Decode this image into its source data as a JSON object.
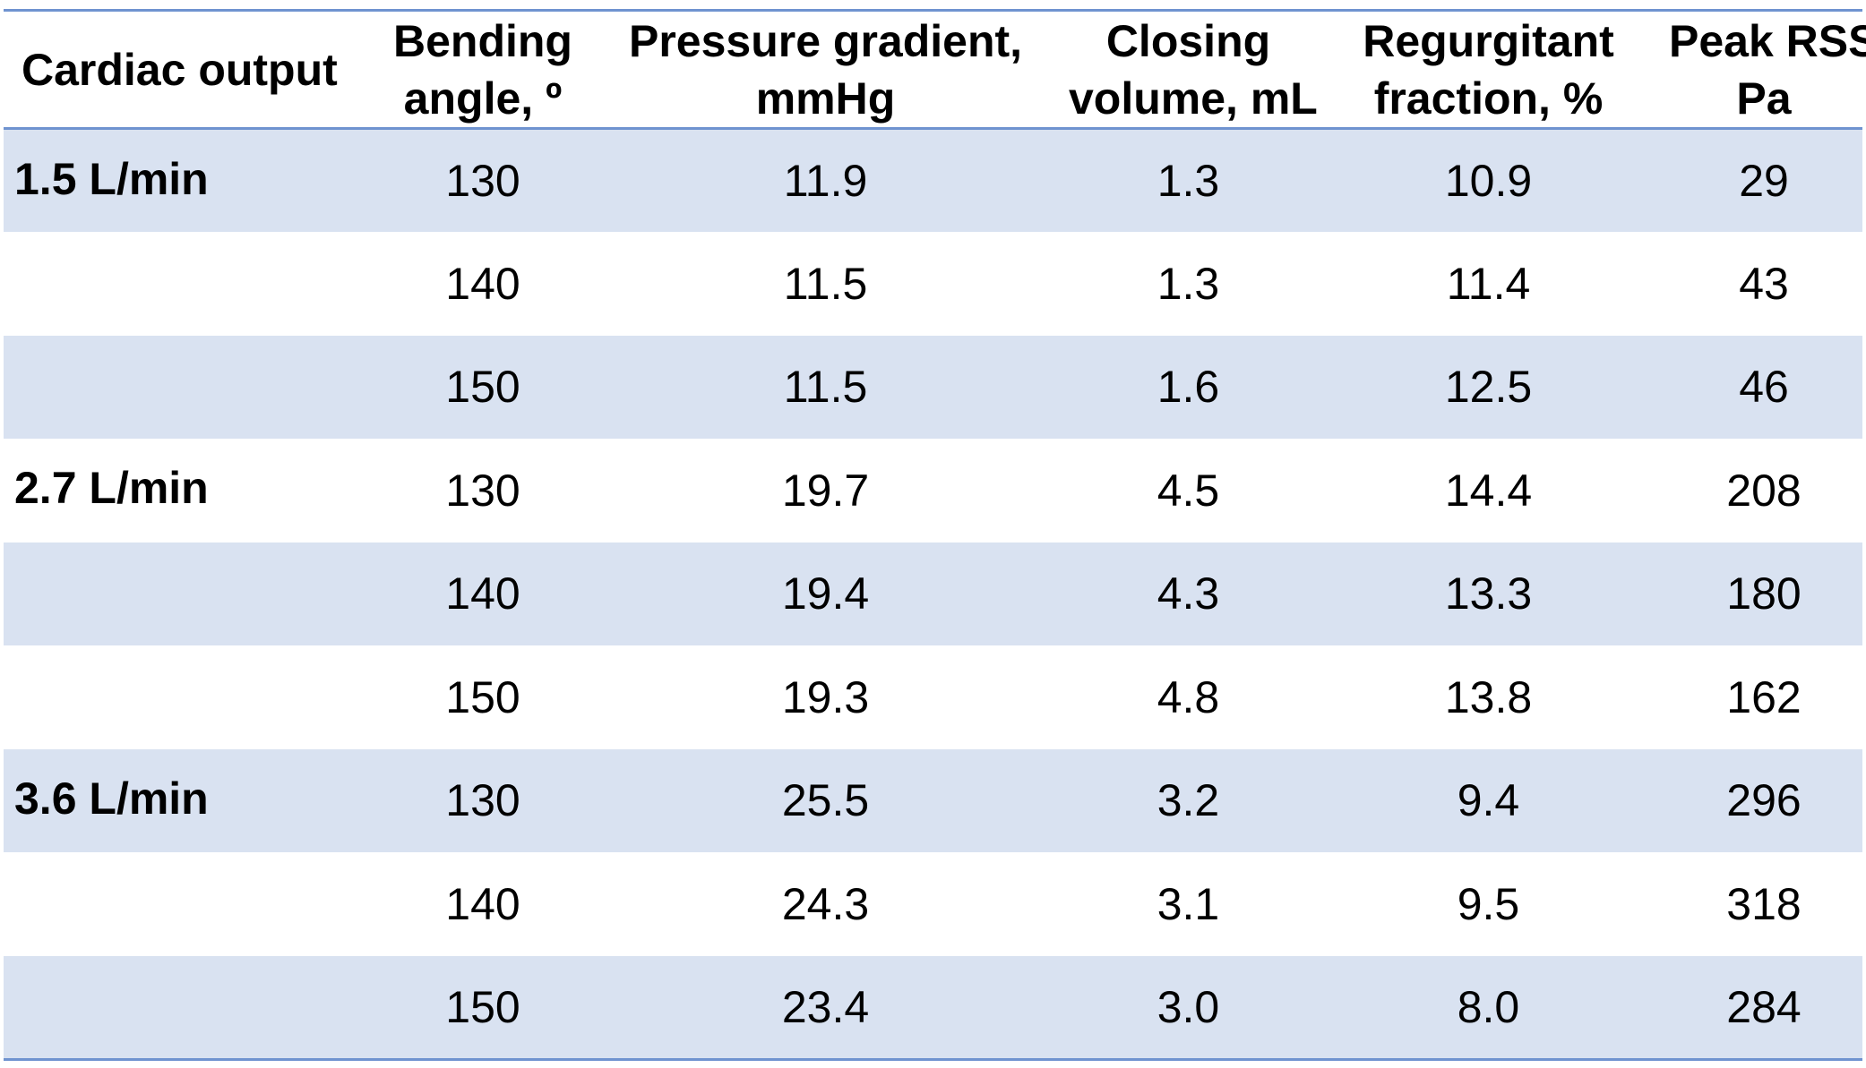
{
  "table": {
    "headers": {
      "cardiac_output": "Cardiac output",
      "bending_angle": [
        "Bending",
        "angle, º"
      ],
      "pressure_gradient": [
        "Pressure gradient,",
        "mmHg"
      ],
      "closing_volume": [
        "Closing",
        "volume, mL"
      ],
      "regurgitant_fraction": [
        "Regurgitant",
        "fraction, %"
      ],
      "peak_rss": [
        "Peak RSS,",
        "Pa"
      ]
    },
    "rows": [
      {
        "group": "1.5 L/min",
        "angle": "130",
        "pressure": "11.9",
        "closing": "1.3",
        "regurgitant": "10.9",
        "rss": "29"
      },
      {
        "group": "",
        "angle": "140",
        "pressure": "11.5",
        "closing": "1.3",
        "regurgitant": "11.4",
        "rss": "43"
      },
      {
        "group": "",
        "angle": "150",
        "pressure": "11.5",
        "closing": "1.6",
        "regurgitant": "12.5",
        "rss": "46"
      },
      {
        "group": "2.7 L/min",
        "angle": "130",
        "pressure": "19.7",
        "closing": "4.5",
        "regurgitant": "14.4",
        "rss": "208"
      },
      {
        "group": "",
        "angle": "140",
        "pressure": "19.4",
        "closing": "4.3",
        "regurgitant": "13.3",
        "rss": "180"
      },
      {
        "group": "",
        "angle": "150",
        "pressure": "19.3",
        "closing": "4.8",
        "regurgitant": "13.8",
        "rss": "162"
      },
      {
        "group": "3.6 L/min",
        "angle": "130",
        "pressure": "25.5",
        "closing": "3.2",
        "regurgitant": "9.4",
        "rss": "296"
      },
      {
        "group": "",
        "angle": "140",
        "pressure": "24.3",
        "closing": "3.1",
        "regurgitant": "9.5",
        "rss": "318"
      },
      {
        "group": "",
        "angle": "150",
        "pressure": "23.4",
        "closing": "3.0",
        "regurgitant": "8.0",
        "rss": "284"
      }
    ]
  },
  "colors": {
    "rule": "#6f93d0",
    "row_shade": "#d9e2f1"
  }
}
